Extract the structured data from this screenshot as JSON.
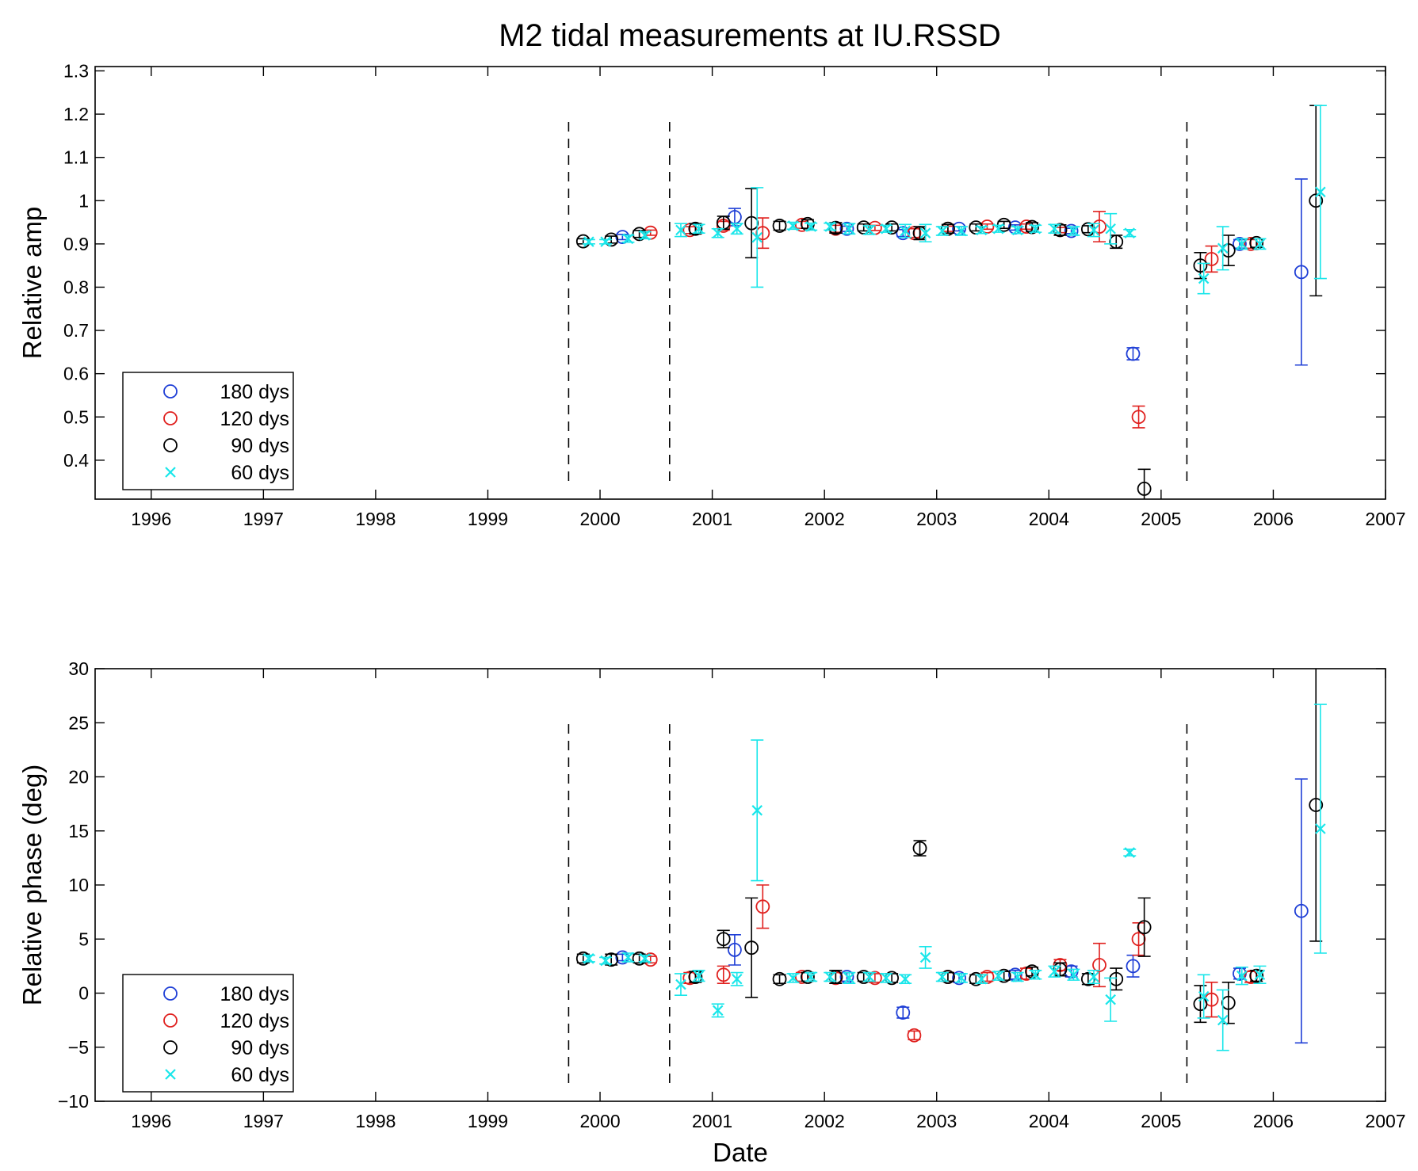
{
  "figure": {
    "title": "M2 tidal measurements at IU.RSSD"
  },
  "colors": {
    "180": "#1f3fd6",
    "120": "#e0201e",
    "90": "#000000",
    "60": "#19e6ea",
    "dashed": "#000000"
  },
  "chart_data": [
    {
      "type": "scatter",
      "ylabel": "Relative amp",
      "xlabel": "",
      "xlim": [
        1995.5,
        2007
      ],
      "ylim": [
        0.31,
        1.31
      ],
      "xticks": [
        1996,
        1997,
        1998,
        1999,
        2000,
        2001,
        2002,
        2003,
        2004,
        2005,
        2006,
        2007
      ],
      "yticks": [
        0.4,
        0.5,
        0.6,
        0.7,
        0.8,
        0.9,
        1,
        1.1,
        1.2,
        1.3
      ],
      "ytick_labels": [
        "0.4",
        "0.5",
        "0.6",
        "0.7",
        "0.8",
        "0.9",
        "1",
        "1.1",
        "1.2",
        "1.3"
      ],
      "grid": false,
      "legend_position": "bottom-left",
      "vlines": [
        1999.72,
        2000.62,
        2005.23
      ],
      "series": [
        {
          "name": "180 dys",
          "marker": "circle",
          "color": "#1f3fd6",
          "x": [
            2000.2,
            2001.2,
            2002.2,
            2002.7,
            2003.2,
            2003.7,
            2004.2,
            2004.75,
            2005.7,
            2006.25
          ],
          "y": [
            0.916,
            0.962,
            0.935,
            0.925,
            0.935,
            0.938,
            0.93,
            0.646,
            0.9,
            0.835
          ],
          "err": [
            0.006,
            0.02,
            0.006,
            0.008,
            0.005,
            0.006,
            0.006,
            0.014,
            0.01,
            0.215
          ]
        },
        {
          "name": "120 dys",
          "marker": "circle",
          "color": "#e0201e",
          "x": [
            2000.45,
            2000.8,
            2001.1,
            2001.45,
            2001.8,
            2002.1,
            2002.45,
            2002.8,
            2003.1,
            2003.45,
            2003.8,
            2004.1,
            2004.45,
            2004.8,
            2005.45,
            2005.8
          ],
          "y": [
            0.926,
            0.932,
            0.942,
            0.925,
            0.944,
            0.935,
            0.937,
            0.925,
            0.935,
            0.94,
            0.94,
            0.932,
            0.94,
            0.5,
            0.865,
            0.9
          ],
          "err": [
            0.006,
            0.008,
            0.01,
            0.035,
            0.008,
            0.008,
            0.006,
            0.01,
            0.006,
            0.006,
            0.006,
            0.006,
            0.035,
            0.025,
            0.03,
            0.01
          ]
        },
        {
          "name": "90 dys",
          "marker": "circle",
          "color": "#000000",
          "x": [
            1999.85,
            2000.1,
            2000.35,
            2000.85,
            2001.1,
            2001.35,
            2001.6,
            2001.85,
            2002.1,
            2002.35,
            2002.6,
            2002.85,
            2003.1,
            2003.35,
            2003.6,
            2003.85,
            2004.1,
            2004.35,
            2004.6,
            2004.85,
            2005.35,
            2005.6,
            2005.85,
            2006.38
          ],
          "y": [
            0.906,
            0.91,
            0.923,
            0.935,
            0.949,
            0.948,
            0.942,
            0.946,
            0.937,
            0.938,
            0.938,
            0.925,
            0.935,
            0.938,
            0.944,
            0.939,
            0.932,
            0.934,
            0.905,
            0.334,
            0.85,
            0.885,
            0.902,
            1.0
          ],
          "err": [
            0.006,
            0.008,
            0.008,
            0.012,
            0.015,
            0.08,
            0.01,
            0.01,
            0.012,
            0.008,
            0.008,
            0.015,
            0.01,
            0.008,
            0.008,
            0.01,
            0.012,
            0.008,
            0.015,
            0.045,
            0.03,
            0.035,
            0.01,
            0.22
          ]
        },
        {
          "name": "60 dys",
          "marker": "x",
          "color": "#19e6ea",
          "x": [
            1999.9,
            2000.05,
            2000.25,
            2000.4,
            2000.72,
            2000.88,
            2001.05,
            2001.22,
            2001.4,
            2001.72,
            2001.88,
            2002.05,
            2002.22,
            2002.4,
            2002.55,
            2002.72,
            2002.9,
            2003.05,
            2003.22,
            2003.4,
            2003.55,
            2003.72,
            2003.88,
            2004.05,
            2004.22,
            2004.4,
            2004.55,
            2004.72,
            2005.38,
            2005.55,
            2005.72,
            2005.88,
            2006.42
          ],
          "y": [
            0.905,
            0.905,
            0.912,
            0.92,
            0.932,
            0.935,
            0.925,
            0.935,
            0.915,
            0.942,
            0.94,
            0.94,
            0.935,
            0.932,
            0.935,
            0.93,
            0.925,
            0.93,
            0.93,
            0.932,
            0.935,
            0.932,
            0.935,
            0.935,
            0.93,
            0.932,
            0.935,
            0.925,
            0.82,
            0.89,
            0.9,
            0.9,
            1.02
          ],
          "err": [
            0.005,
            0.005,
            0.008,
            0.008,
            0.015,
            0.01,
            0.01,
            0.012,
            0.115,
            0.008,
            0.008,
            0.008,
            0.012,
            0.01,
            0.008,
            0.015,
            0.02,
            0.01,
            0.01,
            0.008,
            0.008,
            0.008,
            0.008,
            0.01,
            0.01,
            0.015,
            0.035,
            0.008,
            0.035,
            0.05,
            0.012,
            0.012,
            0.2
          ]
        }
      ]
    },
    {
      "type": "scatter",
      "ylabel": "Relative phase (deg)",
      "xlabel": "Date",
      "xlim": [
        1995.5,
        2007
      ],
      "ylim": [
        -10,
        30
      ],
      "xticks": [
        1996,
        1997,
        1998,
        1999,
        2000,
        2001,
        2002,
        2003,
        2004,
        2005,
        2006,
        2007
      ],
      "yticks": [
        -10,
        -5,
        0,
        5,
        10,
        15,
        20,
        25,
        30
      ],
      "ytick_labels": [
        "−10",
        "−5",
        "0",
        "5",
        "10",
        "15",
        "20",
        "25",
        "30"
      ],
      "grid": false,
      "legend_position": "bottom-left",
      "vlines": [
        1999.72,
        2000.62,
        2005.23
      ],
      "series": [
        {
          "name": "180 dys",
          "marker": "circle",
          "color": "#1f3fd6",
          "x": [
            2000.2,
            2001.2,
            2002.2,
            2002.7,
            2003.2,
            2003.7,
            2004.2,
            2004.75,
            2005.7,
            2006.25
          ],
          "y": [
            3.3,
            4.0,
            1.5,
            -1.8,
            1.4,
            1.7,
            2.0,
            2.5,
            1.8,
            7.6
          ],
          "err": [
            0.3,
            1.4,
            0.4,
            0.5,
            0.4,
            0.4,
            0.5,
            1.0,
            0.5,
            12.2
          ]
        },
        {
          "name": "120 dys",
          "marker": "circle",
          "color": "#e0201e",
          "x": [
            2000.45,
            2000.8,
            2001.1,
            2001.45,
            2001.8,
            2002.1,
            2002.45,
            2002.8,
            2003.1,
            2003.45,
            2003.8,
            2004.1,
            2004.45,
            2004.8,
            2005.45,
            2005.8
          ],
          "y": [
            3.1,
            1.4,
            1.7,
            8.0,
            1.5,
            1.4,
            1.4,
            -3.9,
            1.5,
            1.5,
            1.8,
            2.6,
            2.6,
            5.0,
            -0.6,
            1.5
          ],
          "err": [
            0.3,
            0.5,
            0.8,
            2.0,
            0.4,
            0.5,
            0.4,
            0.4,
            0.4,
            0.4,
            0.5,
            0.5,
            2.0,
            1.5,
            1.6,
            0.5
          ]
        },
        {
          "name": "90 dys",
          "marker": "circle",
          "color": "#000000",
          "x": [
            1999.85,
            2000.1,
            2000.35,
            2000.85,
            2001.1,
            2001.35,
            2001.6,
            2001.85,
            2002.1,
            2002.35,
            2002.6,
            2002.85,
            2003.1,
            2003.35,
            2003.6,
            2003.85,
            2004.1,
            2004.35,
            2004.6,
            2004.85,
            2005.35,
            2005.6,
            2005.85,
            2006.38
          ],
          "y": [
            3.2,
            3.1,
            3.2,
            1.5,
            5.0,
            4.2,
            1.3,
            1.5,
            1.5,
            1.5,
            1.4,
            13.4,
            1.5,
            1.3,
            1.6,
            2.0,
            2.2,
            1.3,
            1.3,
            6.1,
            -1.0,
            -0.9,
            1.6,
            17.4
          ],
          "err": [
            0.4,
            0.5,
            0.4,
            0.5,
            0.8,
            4.6,
            0.4,
            0.4,
            0.6,
            0.4,
            0.4,
            0.7,
            0.4,
            0.4,
            0.4,
            0.4,
            0.6,
            0.5,
            1.0,
            2.7,
            1.7,
            1.9,
            0.5,
            12.6
          ]
        },
        {
          "name": "60 dys",
          "marker": "x",
          "color": "#19e6ea",
          "x": [
            1999.9,
            2000.05,
            2000.25,
            2000.4,
            2000.72,
            2000.88,
            2001.05,
            2001.22,
            2001.4,
            2001.72,
            2001.88,
            2002.05,
            2002.22,
            2002.4,
            2002.55,
            2002.72,
            2002.9,
            2003.05,
            2003.22,
            2003.4,
            2003.55,
            2003.72,
            2003.88,
            2004.05,
            2004.22,
            2004.4,
            2004.55,
            2004.72,
            2005.38,
            2005.55,
            2005.72,
            2005.88,
            2006.42
          ],
          "y": [
            3.2,
            3.0,
            3.3,
            3.2,
            0.8,
            1.6,
            -1.6,
            1.3,
            16.9,
            1.4,
            1.5,
            1.5,
            1.4,
            1.5,
            1.4,
            1.3,
            3.3,
            1.5,
            1.4,
            1.3,
            1.6,
            1.5,
            1.7,
            2.0,
            1.7,
            1.5,
            -0.6,
            13.0,
            -0.3,
            -2.5,
            1.6,
            1.7,
            15.2
          ],
          "err": [
            0.3,
            0.3,
            0.4,
            0.3,
            1.0,
            0.5,
            0.6,
            0.6,
            6.5,
            0.4,
            0.4,
            0.4,
            0.5,
            0.4,
            0.4,
            0.4,
            1.0,
            0.4,
            0.4,
            0.4,
            0.4,
            0.4,
            0.4,
            0.5,
            0.5,
            0.6,
            2.0,
            0.3,
            2.0,
            2.8,
            0.8,
            0.8,
            11.5
          ]
        }
      ]
    }
  ]
}
